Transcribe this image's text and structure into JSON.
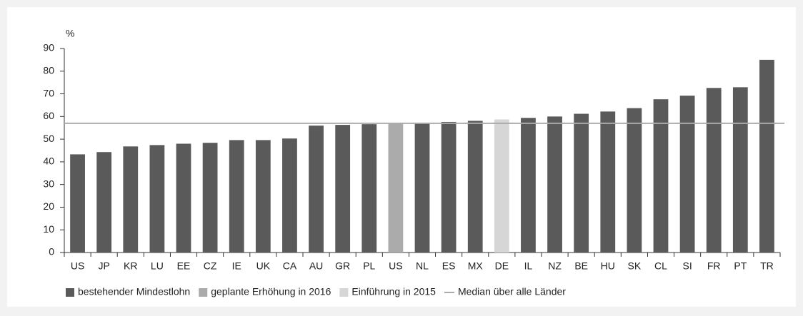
{
  "chart_data": {
    "type": "bar",
    "y_unit": "%",
    "categories": [
      "US",
      "JP",
      "KR",
      "LU",
      "EE",
      "CZ",
      "IE",
      "UK",
      "CA",
      "AU",
      "GR",
      "PL",
      "US",
      "NL",
      "ES",
      "MX",
      "DE",
      "IL",
      "NZ",
      "BE",
      "HU",
      "SK",
      "CL",
      "SI",
      "FR",
      "PT",
      "TR"
    ],
    "series": [
      {
        "name": "bestehender Mindestlohn",
        "color": "#5a5a5a",
        "values": [
          43.3,
          44.3,
          46.8,
          47.4,
          48,
          48.4,
          49.6,
          49.6,
          50.3,
          56,
          56.3,
          56.6,
          null,
          57,
          57.6,
          58.1,
          null,
          59.4,
          60,
          61.2,
          62.2,
          63.7,
          67.6,
          69.2,
          72.6,
          72.9,
          85
        ]
      },
      {
        "name": "geplante Erhöhung in 2016",
        "color": "#ababab",
        "values": [
          null,
          null,
          null,
          null,
          null,
          null,
          null,
          null,
          null,
          null,
          null,
          null,
          57,
          null,
          null,
          null,
          null,
          null,
          null,
          null,
          null,
          null,
          null,
          null,
          null,
          null,
          null
        ]
      },
      {
        "name": "Einführung in 2015",
        "color": "#d6d6d6",
        "values": [
          null,
          null,
          null,
          null,
          null,
          null,
          null,
          null,
          null,
          null,
          null,
          null,
          null,
          null,
          null,
          null,
          58.7,
          null,
          null,
          null,
          null,
          null,
          null,
          null,
          null,
          null,
          null
        ]
      }
    ],
    "median": {
      "name": "Median über alle Länder",
      "value": 57,
      "color": "#ababab"
    },
    "ylim": [
      0,
      90
    ],
    "yticks": [
      0,
      10,
      20,
      30,
      40,
      50,
      60,
      70,
      80,
      90
    ]
  }
}
